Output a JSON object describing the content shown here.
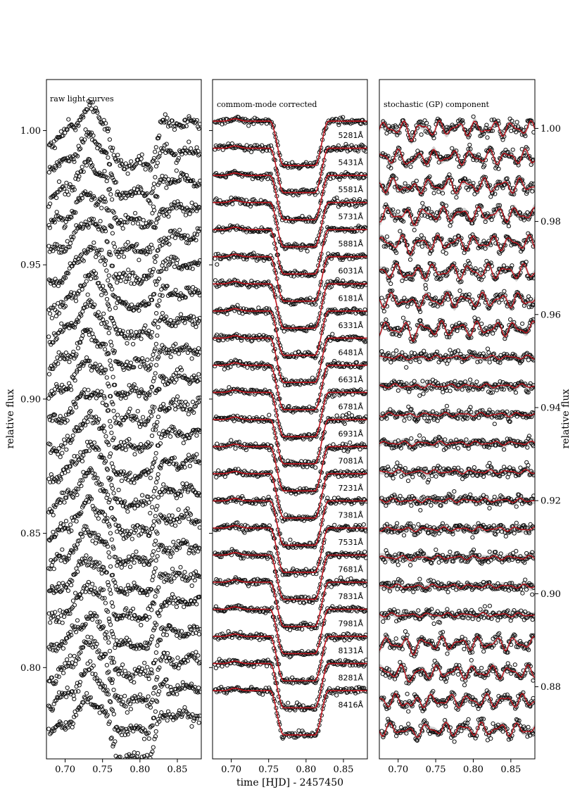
{
  "chart_data": [
    {
      "type": "scatter",
      "panel_label": "raw light curves",
      "xlabel": "",
      "ylabel": "relative flux",
      "xlim": [
        0.675,
        0.882
      ],
      "ylim": [
        0.766,
        1.019
      ],
      "x_ticks": [
        "0.70",
        "0.75",
        "0.80",
        "0.85"
      ],
      "x_tick_values": [
        0.7,
        0.75,
        0.8,
        0.85
      ],
      "y_ticks": [
        "0.80",
        "0.85",
        "0.90",
        "0.95",
        "1.00"
      ],
      "y_tick_values": [
        0.8,
        0.85,
        0.9,
        0.95,
        1.0
      ],
      "series_count": 22,
      "series_top": 1.003,
      "series_spacing": 0.0105,
      "shape": {
        "bump_center": 0.731,
        "bump_width": 0.012,
        "bump_amp": 0.006,
        "ingress": 0.752,
        "egress": 0.83,
        "depth": 0.0155
      }
    },
    {
      "type": "line",
      "panel_label": "commom-mode corrected",
      "xlabel": "time [HJD] - 2457450",
      "ylabel": "",
      "xlim": [
        0.675,
        0.882
      ],
      "ylim": [
        0.766,
        1.019
      ],
      "x_ticks": [
        "0.70",
        "0.75",
        "0.80",
        "0.85"
      ],
      "x_tick_values": [
        0.7,
        0.75,
        0.8,
        0.85
      ],
      "series_count": 22,
      "series_top": 1.0035,
      "series_spacing": 0.0101,
      "series": [
        {
          "name": "5281Å"
        },
        {
          "name": "5431Å"
        },
        {
          "name": "5581Å"
        },
        {
          "name": "5731Å"
        },
        {
          "name": "5881Å"
        },
        {
          "name": "6031Å"
        },
        {
          "name": "6181Å"
        },
        {
          "name": "6331Å"
        },
        {
          "name": "6481Å"
        },
        {
          "name": "6631Å"
        },
        {
          "name": "6781Å"
        },
        {
          "name": "6931Å"
        },
        {
          "name": "7081Å"
        },
        {
          "name": "7231Å"
        },
        {
          "name": "7381Å"
        },
        {
          "name": "7531Å"
        },
        {
          "name": "7681Å"
        },
        {
          "name": "7831Å"
        },
        {
          "name": "7981Å"
        },
        {
          "name": "8131Å"
        },
        {
          "name": "8281Å"
        },
        {
          "name": "8416Å"
        }
      ],
      "model_color": "#c0141e",
      "shape": {
        "ingress": 0.752,
        "egress": 0.83,
        "depth": 0.0165
      }
    },
    {
      "type": "scatter",
      "panel_label": "stochastic (GP) component",
      "xlabel": "",
      "ylabel": "relative flux",
      "xlim": [
        0.675,
        0.882
      ],
      "ylim": [
        0.8645,
        1.0105
      ],
      "x_ticks": [
        "0.70",
        "0.75",
        "0.80",
        "0.85"
      ],
      "x_tick_values": [
        0.7,
        0.75,
        0.8,
        0.85
      ],
      "y_ticks": [
        "0.88",
        "0.90",
        "0.92",
        "0.94",
        "0.96",
        "0.98",
        "1.00"
      ],
      "y_tick_values": [
        0.88,
        0.9,
        0.92,
        0.94,
        0.96,
        0.98,
        1.0
      ],
      "y_axis_side": "right",
      "series_count": 22,
      "series_top": 1.0,
      "series_spacing": 0.00615,
      "model_color": "#c0141e",
      "band_color": "#9a9a9a"
    }
  ]
}
